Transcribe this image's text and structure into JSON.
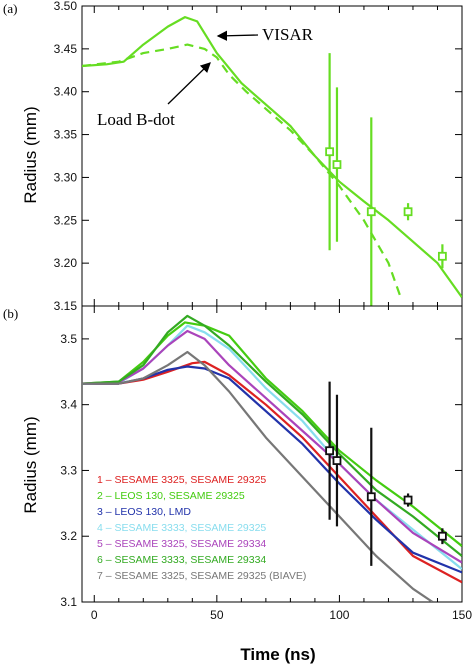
{
  "chart_data": [
    {
      "type": "line",
      "panel_label": "(a)",
      "ylabel": "Radius (mm)",
      "xlim": [
        -5,
        150
      ],
      "ylim": [
        3.15,
        3.5
      ],
      "yticks": [
        "3.15",
        "3.20",
        "3.25",
        "3.30",
        "3.35",
        "3.40",
        "3.45",
        "3.50"
      ],
      "series": [
        {
          "name": "VISAR",
          "color": "#66dd22",
          "style": "solid",
          "x": [
            -5,
            5,
            12,
            20,
            30,
            37,
            42,
            50,
            60,
            70,
            80,
            90,
            100,
            110,
            120,
            130,
            140,
            150
          ],
          "y": [
            3.43,
            3.432,
            3.435,
            3.455,
            3.476,
            3.487,
            3.482,
            3.445,
            3.41,
            3.385,
            3.36,
            3.325,
            3.295,
            3.272,
            3.25,
            3.225,
            3.2,
            3.16
          ]
        },
        {
          "name": "Load B-dot",
          "color": "#66dd22",
          "style": "dashed",
          "x": [
            -5,
            10,
            20,
            30,
            38,
            45,
            50,
            55,
            62,
            70,
            80,
            90,
            100,
            110,
            120,
            125
          ],
          "y": [
            3.43,
            3.435,
            3.445,
            3.45,
            3.455,
            3.45,
            3.44,
            3.42,
            3.4,
            3.38,
            3.355,
            3.325,
            3.29,
            3.25,
            3.2,
            3.16
          ]
        }
      ],
      "points": {
        "color": "#66dd22",
        "x": [
          96,
          99,
          113,
          128,
          142
        ],
        "y": [
          3.33,
          3.315,
          3.26,
          3.26,
          3.208
        ],
        "err": [
          0.115,
          0.09,
          0.11,
          0.01,
          0.014
        ]
      },
      "annotations": [
        "VISAR",
        "Load B-dot"
      ]
    },
    {
      "type": "line",
      "panel_label": "(b)",
      "xlabel": "Time (ns)",
      "ylabel": "Radius (mm)",
      "xlim": [
        -5,
        150
      ],
      "ylim": [
        3.1,
        3.55
      ],
      "xticks": [
        "0",
        "50",
        "100",
        "150"
      ],
      "yticks": [
        "3.1",
        "3.2",
        "3.3",
        "3.4",
        "3.5"
      ],
      "legend_position": "bottom-left",
      "series": [
        {
          "name": "1 – SESAME 3325, SESAME 29325",
          "color": "#dd2222",
          "x": [
            -5,
            10,
            20,
            30,
            40,
            45,
            55,
            70,
            85,
            100,
            115,
            130,
            150
          ],
          "y": [
            3.432,
            3.432,
            3.438,
            3.45,
            3.463,
            3.465,
            3.445,
            3.4,
            3.35,
            3.29,
            3.23,
            3.17,
            3.13
          ]
        },
        {
          "name": "2 – LEOS 130, SESAME 29325",
          "color": "#44cc11",
          "x": [
            -5,
            10,
            20,
            30,
            37,
            45,
            55,
            70,
            85,
            100,
            115,
            130,
            150
          ],
          "y": [
            3.432,
            3.435,
            3.465,
            3.505,
            3.525,
            3.52,
            3.505,
            3.44,
            3.39,
            3.33,
            3.285,
            3.245,
            3.185
          ]
        },
        {
          "name": "3 – LEOS 130, LMD",
          "color": "#2233aa",
          "x": [
            -5,
            10,
            20,
            30,
            38,
            45,
            55,
            70,
            85,
            100,
            115,
            130,
            150
          ],
          "y": [
            3.432,
            3.432,
            3.44,
            3.453,
            3.458,
            3.455,
            3.44,
            3.39,
            3.34,
            3.28,
            3.225,
            3.175,
            3.145
          ]
        },
        {
          "name": "4 – SESAME 3333, SESAME 29325",
          "color": "#88ddee",
          "x": [
            -5,
            10,
            20,
            30,
            38,
            45,
            55,
            70,
            85,
            100,
            115,
            130,
            150
          ],
          "y": [
            3.432,
            3.433,
            3.455,
            3.49,
            3.52,
            3.51,
            3.485,
            3.425,
            3.375,
            3.31,
            3.255,
            3.21,
            3.15
          ]
        },
        {
          "name": "5 – SESAME 3325, SESAME 29334",
          "color": "#aa44bb",
          "x": [
            -5,
            10,
            20,
            30,
            38,
            45,
            55,
            70,
            85,
            100,
            115,
            130,
            150
          ],
          "y": [
            3.432,
            3.434,
            3.455,
            3.49,
            3.512,
            3.5,
            3.46,
            3.41,
            3.36,
            3.31,
            3.255,
            3.205,
            3.16
          ]
        },
        {
          "name": "6 – SESAME 3333, SESAME 29334",
          "color": "#33aa22",
          "x": [
            -5,
            10,
            20,
            30,
            38,
            45,
            55,
            70,
            85,
            100,
            115,
            130,
            150
          ],
          "y": [
            3.432,
            3.435,
            3.46,
            3.51,
            3.535,
            3.52,
            3.49,
            3.435,
            3.385,
            3.325,
            3.27,
            3.23,
            3.17
          ]
        },
        {
          "name": "7 – SESAME 3325, SESAME 29325 (BIAVE)",
          "color": "#777777",
          "x": [
            -5,
            10,
            20,
            30,
            38,
            45,
            55,
            70,
            85,
            100,
            115,
            130,
            138
          ],
          "y": [
            3.432,
            3.432,
            3.44,
            3.46,
            3.48,
            3.46,
            3.42,
            3.35,
            3.29,
            3.23,
            3.17,
            3.12,
            3.1
          ]
        }
      ],
      "points": {
        "color": "#111111",
        "x": [
          96,
          99,
          113,
          128,
          142
        ],
        "y": [
          3.33,
          3.315,
          3.26,
          3.255,
          3.2
        ],
        "err": [
          0.105,
          0.1,
          0.105,
          0.01,
          0.012
        ]
      }
    }
  ]
}
